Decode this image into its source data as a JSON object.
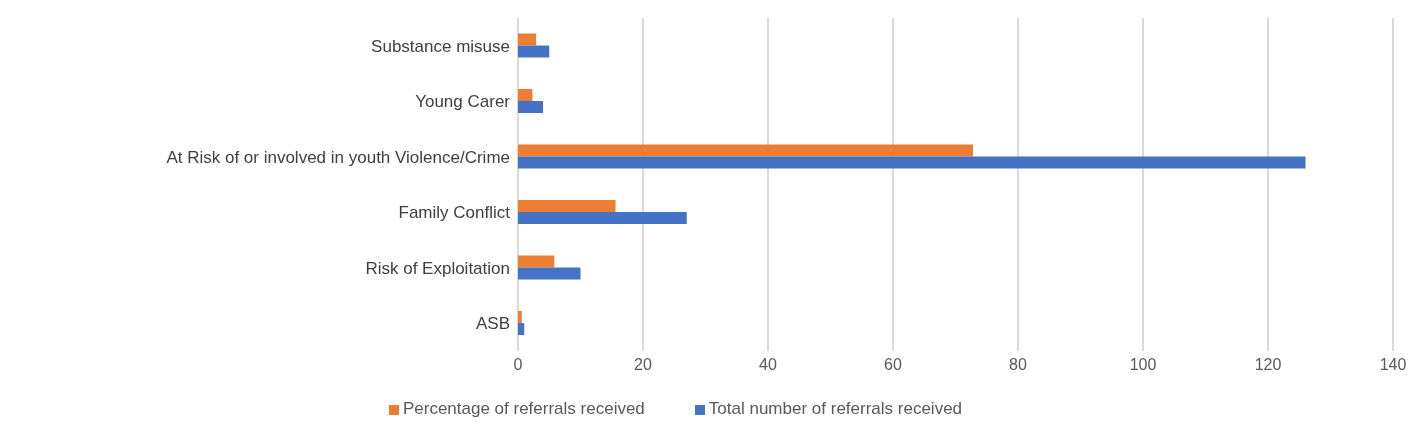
{
  "chart_data": {
    "type": "bar",
    "orientation": "horizontal",
    "categories": [
      "Substance misuse",
      "Young Carer",
      "At Risk of  or involved in youth Violence/Crime",
      "Family Conflict",
      "Risk of Exploitation",
      "ASB"
    ],
    "series": [
      {
        "name": "Percentage of referrals received",
        "color": "#ed7d31",
        "values": [
          2.9,
          2.3,
          72.8,
          15.6,
          5.8,
          0.6
        ]
      },
      {
        "name": "Total number of referrals received",
        "color": "#4472c4",
        "values": [
          5,
          4,
          126,
          27,
          10,
          1
        ]
      }
    ],
    "xlim": [
      0,
      140
    ],
    "xticks": [
      0,
      20,
      40,
      60,
      80,
      100,
      120,
      140
    ],
    "grid": "x",
    "legend": "bottom"
  }
}
